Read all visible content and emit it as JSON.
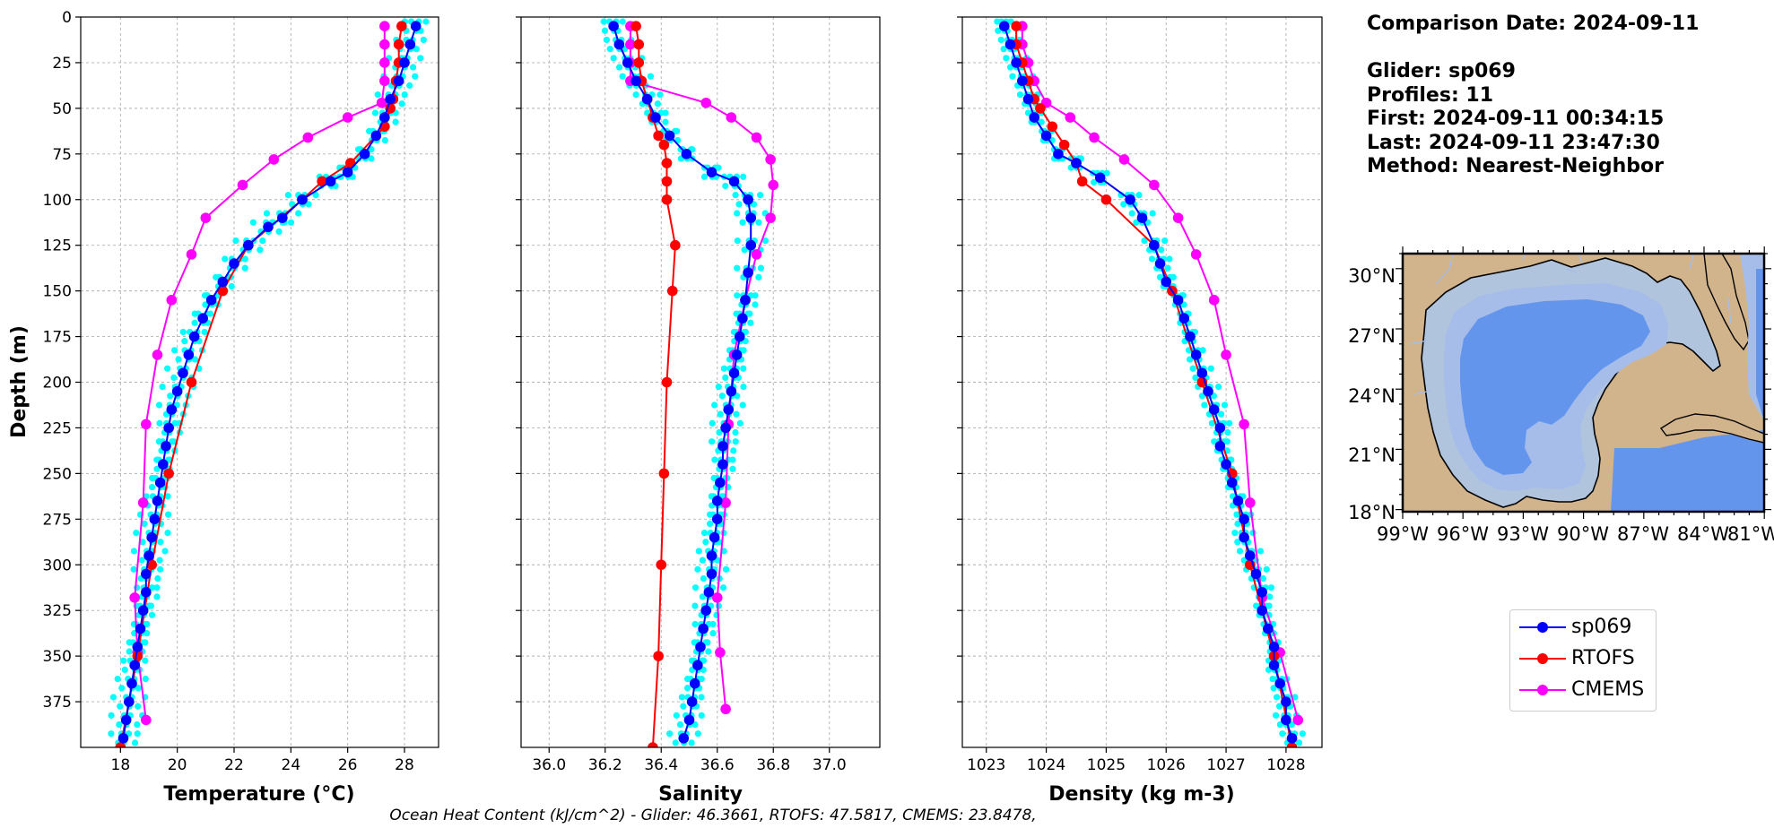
{
  "chart_data": [
    {
      "type": "line",
      "xlabel": "Temperature (°C)",
      "ylabel": "Depth (m)",
      "xlim": [
        16.6,
        29.2
      ],
      "ylim": [
        400,
        0
      ],
      "xticks": [
        18,
        20,
        22,
        24,
        26,
        28
      ],
      "yticks": [
        0,
        25,
        50,
        75,
        100,
        125,
        150,
        175,
        200,
        225,
        250,
        275,
        300,
        325,
        350,
        375
      ],
      "grid": true,
      "series": [
        {
          "name": "sp069",
          "color": "#0000ff",
          "points": [
            [
              28.4,
              5
            ],
            [
              28.2,
              15
            ],
            [
              28.0,
              25
            ],
            [
              27.8,
              35
            ],
            [
              27.5,
              45
            ],
            [
              27.3,
              55
            ],
            [
              27.0,
              65
            ],
            [
              26.6,
              75
            ],
            [
              26.0,
              85
            ],
            [
              25.4,
              90
            ],
            [
              24.4,
              100
            ],
            [
              23.7,
              110
            ],
            [
              23.2,
              115
            ],
            [
              22.5,
              125
            ],
            [
              22.0,
              135
            ],
            [
              21.6,
              145
            ],
            [
              21.2,
              155
            ],
            [
              20.9,
              165
            ],
            [
              20.6,
              175
            ],
            [
              20.4,
              185
            ],
            [
              20.2,
              195
            ],
            [
              20.0,
              205
            ],
            [
              19.8,
              215
            ],
            [
              19.7,
              225
            ],
            [
              19.6,
              235
            ],
            [
              19.5,
              245
            ],
            [
              19.4,
              255
            ],
            [
              19.3,
              265
            ],
            [
              19.2,
              275
            ],
            [
              19.1,
              285
            ],
            [
              19.0,
              295
            ],
            [
              18.9,
              305
            ],
            [
              18.9,
              315
            ],
            [
              18.8,
              325
            ],
            [
              18.7,
              335
            ],
            [
              18.6,
              345
            ],
            [
              18.5,
              355
            ],
            [
              18.4,
              365
            ],
            [
              18.3,
              375
            ],
            [
              18.2,
              385
            ],
            [
              18.1,
              395
            ]
          ]
        },
        {
          "name": "RTOFS",
          "color": "#ff0000",
          "points": [
            [
              27.9,
              5
            ],
            [
              27.8,
              15
            ],
            [
              27.8,
              25
            ],
            [
              27.7,
              35
            ],
            [
              27.6,
              45
            ],
            [
              27.5,
              50
            ],
            [
              27.3,
              60
            ],
            [
              26.1,
              80
            ],
            [
              25.1,
              90
            ],
            [
              24.4,
              100
            ],
            [
              22.5,
              125
            ],
            [
              21.6,
              150
            ],
            [
              20.5,
              200
            ],
            [
              19.7,
              250
            ],
            [
              19.1,
              300
            ],
            [
              18.6,
              350
            ],
            [
              18.0,
              400
            ]
          ]
        },
        {
          "name": "CMEMS",
          "color": "#ff00ff",
          "points": [
            [
              27.3,
              5
            ],
            [
              27.3,
              15
            ],
            [
              27.3,
              25
            ],
            [
              27.3,
              35
            ],
            [
              27.2,
              47
            ],
            [
              26.0,
              55
            ],
            [
              24.6,
              66
            ],
            [
              23.4,
              78
            ],
            [
              22.3,
              92
            ],
            [
              21.0,
              110
            ],
            [
              20.5,
              130
            ],
            [
              19.8,
              155
            ],
            [
              19.3,
              185
            ],
            [
              18.9,
              223
            ],
            [
              18.8,
              266
            ],
            [
              18.5,
              318
            ],
            [
              18.6,
              348
            ],
            [
              18.9,
              385
            ]
          ]
        }
      ],
      "glider_profiles_color": "#00ffff"
    },
    {
      "type": "line",
      "xlabel": "Salinity",
      "xlim": [
        35.9,
        37.18
      ],
      "ylim": [
        400,
        0
      ],
      "xticks": [
        36.0,
        36.2,
        36.4,
        36.6,
        36.8,
        37.0
      ],
      "grid": true,
      "series": [
        {
          "name": "sp069",
          "color": "#0000ff",
          "points": [
            [
              36.23,
              5
            ],
            [
              36.25,
              15
            ],
            [
              36.28,
              25
            ],
            [
              36.31,
              35
            ],
            [
              36.35,
              45
            ],
            [
              36.38,
              55
            ],
            [
              36.43,
              65
            ],
            [
              36.49,
              75
            ],
            [
              36.58,
              85
            ],
            [
              36.66,
              90
            ],
            [
              36.71,
              100
            ],
            [
              36.72,
              110
            ],
            [
              36.72,
              125
            ],
            [
              36.71,
              140
            ],
            [
              36.7,
              155
            ],
            [
              36.69,
              165
            ],
            [
              36.68,
              175
            ],
            [
              36.67,
              185
            ],
            [
              36.66,
              195
            ],
            [
              36.65,
              205
            ],
            [
              36.64,
              215
            ],
            [
              36.63,
              225
            ],
            [
              36.62,
              235
            ],
            [
              36.62,
              245
            ],
            [
              36.61,
              255
            ],
            [
              36.6,
              265
            ],
            [
              36.6,
              275
            ],
            [
              36.59,
              285
            ],
            [
              36.58,
              295
            ],
            [
              36.58,
              305
            ],
            [
              36.57,
              315
            ],
            [
              36.56,
              325
            ],
            [
              36.55,
              335
            ],
            [
              36.54,
              345
            ],
            [
              36.53,
              355
            ],
            [
              36.52,
              365
            ],
            [
              36.51,
              375
            ],
            [
              36.5,
              385
            ],
            [
              36.48,
              395
            ]
          ]
        },
        {
          "name": "RTOFS",
          "color": "#ff0000",
          "points": [
            [
              36.31,
              5
            ],
            [
              36.32,
              15
            ],
            [
              36.32,
              25
            ],
            [
              36.33,
              35
            ],
            [
              36.35,
              45
            ],
            [
              36.37,
              55
            ],
            [
              36.39,
              65
            ],
            [
              36.41,
              70
            ],
            [
              36.42,
              80
            ],
            [
              36.42,
              90
            ],
            [
              36.42,
              100
            ],
            [
              36.45,
              125
            ],
            [
              36.44,
              150
            ],
            [
              36.42,
              200
            ],
            [
              36.41,
              250
            ],
            [
              36.4,
              300
            ],
            [
              36.39,
              350
            ],
            [
              36.37,
              400
            ]
          ]
        },
        {
          "name": "CMEMS",
          "color": "#ff00ff",
          "points": [
            [
              36.29,
              5
            ],
            [
              36.29,
              15
            ],
            [
              36.29,
              25
            ],
            [
              36.29,
              35
            ],
            [
              36.56,
              47
            ],
            [
              36.65,
              55
            ],
            [
              36.74,
              66
            ],
            [
              36.79,
              78
            ],
            [
              36.8,
              92
            ],
            [
              36.79,
              110
            ],
            [
              36.74,
              130
            ],
            [
              36.7,
              155
            ],
            [
              36.66,
              185
            ],
            [
              36.64,
              223
            ],
            [
              36.63,
              266
            ],
            [
              36.6,
              318
            ],
            [
              36.61,
              348
            ],
            [
              36.63,
              379
            ]
          ]
        }
      ],
      "glider_profiles_color": "#00ffff"
    },
    {
      "type": "line",
      "xlabel": "Density (kg m-3)",
      "xlim": [
        1022.6,
        1028.6
      ],
      "ylim": [
        400,
        0
      ],
      "xticks": [
        1023,
        1024,
        1025,
        1026,
        1027,
        1028
      ],
      "grid": true,
      "series": [
        {
          "name": "sp069",
          "color": "#0000ff",
          "points": [
            [
              1023.3,
              5
            ],
            [
              1023.4,
              15
            ],
            [
              1023.5,
              25
            ],
            [
              1023.6,
              35
            ],
            [
              1023.7,
              45
            ],
            [
              1023.8,
              55
            ],
            [
              1024.0,
              65
            ],
            [
              1024.2,
              75
            ],
            [
              1024.5,
              80
            ],
            [
              1024.9,
              88
            ],
            [
              1025.4,
              100
            ],
            [
              1025.6,
              110
            ],
            [
              1025.8,
              125
            ],
            [
              1025.9,
              135
            ],
            [
              1026.0,
              145
            ],
            [
              1026.2,
              155
            ],
            [
              1026.3,
              165
            ],
            [
              1026.4,
              175
            ],
            [
              1026.5,
              185
            ],
            [
              1026.6,
              195
            ],
            [
              1026.7,
              205
            ],
            [
              1026.8,
              215
            ],
            [
              1026.9,
              225
            ],
            [
              1026.9,
              235
            ],
            [
              1027.0,
              245
            ],
            [
              1027.1,
              255
            ],
            [
              1027.2,
              265
            ],
            [
              1027.3,
              275
            ],
            [
              1027.3,
              285
            ],
            [
              1027.4,
              295
            ],
            [
              1027.5,
              305
            ],
            [
              1027.6,
              315
            ],
            [
              1027.6,
              325
            ],
            [
              1027.7,
              335
            ],
            [
              1027.8,
              345
            ],
            [
              1027.8,
              355
            ],
            [
              1027.9,
              365
            ],
            [
              1028.0,
              375
            ],
            [
              1028.0,
              385
            ],
            [
              1028.1,
              395
            ]
          ]
        },
        {
          "name": "RTOFS",
          "color": "#ff0000",
          "points": [
            [
              1023.5,
              5
            ],
            [
              1023.5,
              15
            ],
            [
              1023.6,
              25
            ],
            [
              1023.7,
              35
            ],
            [
              1023.8,
              45
            ],
            [
              1023.9,
              50
            ],
            [
              1024.1,
              60
            ],
            [
              1024.3,
              70
            ],
            [
              1024.5,
              80
            ],
            [
              1024.6,
              90
            ],
            [
              1025.0,
              100
            ],
            [
              1025.8,
              125
            ],
            [
              1026.1,
              150
            ],
            [
              1026.6,
              200
            ],
            [
              1027.1,
              250
            ],
            [
              1027.4,
              300
            ],
            [
              1027.8,
              350
            ],
            [
              1028.1,
              400
            ]
          ]
        },
        {
          "name": "CMEMS",
          "color": "#ff00ff",
          "points": [
            [
              1023.6,
              5
            ],
            [
              1023.6,
              15
            ],
            [
              1023.7,
              25
            ],
            [
              1023.8,
              35
            ],
            [
              1024.0,
              47
            ],
            [
              1024.4,
              55
            ],
            [
              1024.8,
              66
            ],
            [
              1025.3,
              78
            ],
            [
              1025.8,
              92
            ],
            [
              1026.2,
              110
            ],
            [
              1026.5,
              130
            ],
            [
              1026.8,
              155
            ],
            [
              1027.0,
              185
            ],
            [
              1027.3,
              223
            ],
            [
              1027.4,
              266
            ],
            [
              1027.6,
              318
            ],
            [
              1027.9,
              348
            ],
            [
              1028.2,
              385
            ]
          ]
        }
      ],
      "glider_profiles_color": "#00ffff"
    }
  ],
  "info": {
    "comparison": "Comparison Date: 2024-09-11",
    "glider": "Glider: sp069",
    "profiles": "Profiles: 11",
    "first": "First: 2024-09-11 00:34:15",
    "last": "Last: 2024-09-11 23:47:30",
    "method": "Method: Nearest-Neighbor"
  },
  "map": {
    "lat_labels": [
      "30°N",
      "27°N",
      "24°N",
      "21°N",
      "18°N"
    ],
    "lon_labels": [
      "99°W",
      "96°W",
      "93°W",
      "90°W",
      "87°W",
      "84°W",
      "81°W"
    ],
    "land_color": "#d2b48c",
    "shelf_color": "#b0c4de",
    "slope_color": "#a5bde8",
    "deep_color": "#6495ed"
  },
  "legend": {
    "items": [
      {
        "label": "sp069",
        "color": "#0000ff"
      },
      {
        "label": "RTOFS",
        "color": "#ff0000"
      },
      {
        "label": "CMEMS",
        "color": "#ff00ff"
      }
    ]
  },
  "footer": "Ocean Heat Content (kJ/cm^2) - Glider: 46.3661,  RTOFS: 47.5817,  CMEMS: 23.8478,"
}
